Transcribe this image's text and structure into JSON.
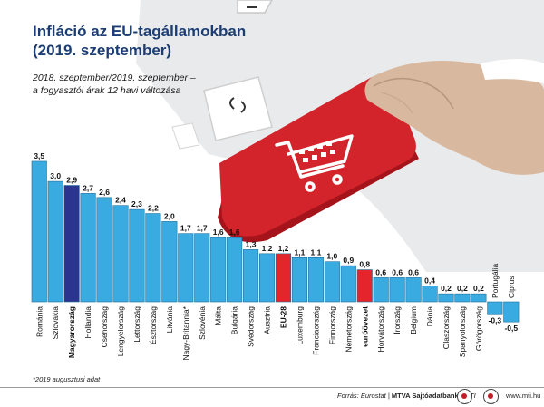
{
  "title_line1": "Infláció az EU-tagállamokban",
  "title_line2": "(2019. szeptember)",
  "subtitle_line1": "2018. szeptember/2019. szeptember –",
  "subtitle_line2": "a fogyasztói árak 12 havi változása",
  "footnote": "*2019 augusztusi adat",
  "source_prefix": "Forrás: Eurostat | ",
  "source_org": "MTVA Sajtóadatbank",
  "source_suffix": " | MTI",
  "website": "www.mti.hu",
  "colors": {
    "bar": "#3aabe1",
    "hungary": "#2b3590",
    "eu": "#e4262c",
    "title": "#1c3d73"
  },
  "icons": {
    "illustration": "hand-pressing-shopping-cart-key-icon"
  },
  "chart_data": {
    "type": "bar",
    "title": "Infláció az EU-tagállamokban (2019. szeptember)",
    "categories": [
      "Románia",
      "Szlovákia",
      "Magyarország",
      "Hollandia",
      "Csehország",
      "Lengyelország",
      "Lettország",
      "Észtország",
      "Litvánia",
      "Nagy-Britannia*",
      "Szlovénia",
      "Málta",
      "Bulgária",
      "Svédország",
      "Ausztria",
      "EU-28",
      "Luxemburg",
      "Franciaország",
      "Finnország",
      "Németország",
      "euróövezet",
      "Horvátország",
      "Írország",
      "Belgium",
      "Dánia",
      "Olaszország",
      "Spanyolország",
      "Görögország",
      "Portugália",
      "Ciprus"
    ],
    "values": [
      3.5,
      3.0,
      2.9,
      2.7,
      2.6,
      2.4,
      2.3,
      2.2,
      2.0,
      1.7,
      1.7,
      1.6,
      1.6,
      1.3,
      1.2,
      1.2,
      1.1,
      1.1,
      1.0,
      0.9,
      0.8,
      0.6,
      0.6,
      0.6,
      0.4,
      0.2,
      0.2,
      0.2,
      -0.3,
      -0.5
    ],
    "value_labels": [
      "3,5",
      "3,0",
      "2,9",
      "2,7",
      "2,6",
      "2,4",
      "2,3",
      "2,2",
      "2,0",
      "1,7",
      "1,7",
      "1,6",
      "1,6",
      "1,3",
      "1,2",
      "1,2",
      "1,1",
      "1,1",
      "1,0",
      "0,9",
      "0,8",
      "0,6",
      "0,6",
      "0,6",
      "0,4",
      "0,2",
      "0,2",
      "0,2",
      "-0,3",
      "-0,5"
    ],
    "highlight_blue": [
      "Magyarország"
    ],
    "highlight_red": [
      "EU-28",
      "euróövezet"
    ],
    "ylim": [
      -0.5,
      3.5
    ],
    "grid": false,
    "xlabel": "",
    "ylabel": ""
  }
}
